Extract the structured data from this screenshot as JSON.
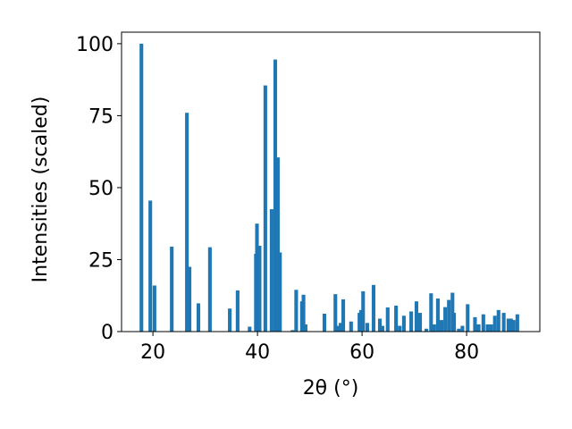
{
  "chart_data": {
    "type": "bar",
    "xlabel": "2θ (°)",
    "ylabel": "Intensities (scaled)",
    "x": [
      17.8,
      19.5,
      20.3,
      23.6,
      26.5,
      27.0,
      28.7,
      30.9,
      34.7,
      36.2,
      38.5,
      39.7,
      39.9,
      40.4,
      41.5,
      42.7,
      43.4,
      43.9,
      44.3,
      46.7,
      47.4,
      48.5,
      48.8,
      49.2,
      52.8,
      54.9,
      55.4,
      55.9,
      56.4,
      57.9,
      59.5,
      59.8,
      60.2,
      61.0,
      62.2,
      63.4,
      63.9,
      64.9,
      66.5,
      67.2,
      68.0,
      69.4,
      70.4,
      71.1,
      72.3,
      73.2,
      73.8,
      74.5,
      75.2,
      75.9,
      76.6,
      77.3,
      77.6,
      78.5,
      79.2,
      80.2,
      81.6,
      82.3,
      83.2,
      84.0,
      84.7,
      85.4,
      86.1,
      87.1,
      88.0,
      88.5,
      89.0,
      89.7
    ],
    "values": [
      100,
      45.5,
      16,
      29.5,
      76,
      22.5,
      9.8,
      29.3,
      8,
      14.3,
      1.7,
      27,
      37.5,
      29.8,
      85.5,
      42.5,
      94.5,
      60.5,
      27.5,
      0.5,
      14.5,
      10.5,
      12.8,
      2.5,
      6.2,
      13,
      2,
      3,
      11.2,
      3.5,
      6.5,
      7.5,
      14,
      3,
      16.2,
      4.5,
      2,
      8.4,
      9,
      2,
      5.5,
      7,
      10.5,
      6.5,
      1,
      13.3,
      2.5,
      11.5,
      4,
      8.5,
      11,
      13.5,
      6.5,
      1,
      2,
      9.5,
      5,
      2.5,
      6,
      2.5,
      2.5,
      5.5,
      7.5,
      6.5,
      4.5,
      4.5,
      4,
      6
    ],
    "color": "#1f77b4",
    "xlim": [
      14,
      94
    ],
    "xticks": [
      20,
      40,
      60,
      80
    ],
    "ylim": [
      0,
      104
    ],
    "yticks": [
      0,
      25,
      50,
      75,
      100
    ],
    "grid": false
  }
}
